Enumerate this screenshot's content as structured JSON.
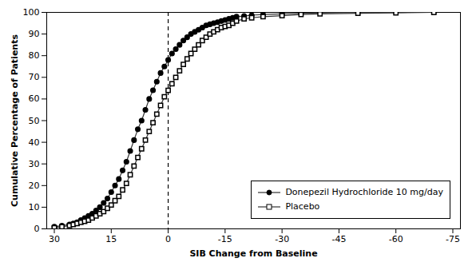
{
  "chart_data": {
    "type": "line",
    "title": "",
    "xlabel": "SIB Change from Baseline",
    "ylabel": "Cumulative Percentage of Patients",
    "xlim": [
      32,
      -77
    ],
    "ylim": [
      0,
      100
    ],
    "xticks": [
      30,
      15,
      0,
      -15,
      -30,
      -45,
      -60,
      -75
    ],
    "yticks": [
      0,
      10,
      20,
      30,
      40,
      50,
      60,
      70,
      80,
      90,
      100
    ],
    "vline_x": 0,
    "grid": false,
    "legend": "lower right",
    "x": [
      30,
      28,
      26,
      25,
      24,
      23,
      22,
      21,
      20,
      19,
      18,
      17,
      16,
      15,
      14,
      13,
      12,
      11,
      10,
      9,
      8,
      7,
      6,
      5,
      4,
      3,
      2,
      1,
      0,
      -1,
      -2,
      -3,
      -4,
      -5,
      -6,
      -7,
      -8,
      -9,
      -10,
      -11,
      -12,
      -13,
      -14,
      -15,
      -16,
      -17,
      -18,
      -20,
      -22,
      -25,
      -30,
      -35,
      -40,
      -50,
      -60,
      -70
    ],
    "series": [
      {
        "name": "Donepezil Hydrochloride 10 mg/day",
        "color": "#333333",
        "marker": "circle",
        "values": [
          1,
          1.5,
          2,
          2.5,
          3,
          4,
          5,
          6,
          7,
          8.5,
          10,
          12,
          14,
          17,
          20,
          23,
          27,
          31,
          36,
          41,
          46,
          50,
          55,
          60,
          64,
          68,
          72,
          75,
          78,
          81,
          83,
          85,
          87,
          88.5,
          90,
          91,
          92,
          93,
          94,
          94.5,
          95,
          95.5,
          96,
          96.5,
          97,
          97.5,
          98,
          98.3,
          98.7,
          99,
          99.3,
          99.6,
          99.8,
          100,
          100,
          100
        ]
      },
      {
        "name": "Placebo",
        "color": "#333333",
        "marker": "square",
        "values": [
          0.5,
          1,
          1.5,
          2,
          2.5,
          3,
          3.5,
          4,
          5,
          6,
          7,
          8,
          9.5,
          11,
          13,
          15,
          18,
          21,
          25,
          29,
          33,
          37,
          41,
          45,
          49,
          53,
          57,
          61,
          64,
          67,
          70,
          73,
          76,
          78.5,
          81,
          83,
          85,
          87,
          88.5,
          90,
          91,
          92,
          93,
          93.5,
          94,
          95,
          96,
          97,
          97.5,
          98,
          98.5,
          99,
          99.3,
          99.6,
          99.8,
          100
        ]
      }
    ]
  }
}
